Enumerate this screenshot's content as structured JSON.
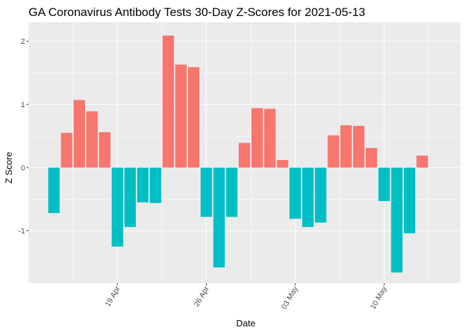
{
  "chart_data": {
    "type": "bar",
    "title": "GA Coronavirus Antibody Tests 30-Day Z-Scores for 2021-05-13",
    "xlabel": "Date",
    "ylabel": "Z Score",
    "x_start_date": "2021-04-14",
    "x_tick_labels": [
      {
        "date": "2021-04-19",
        "label": "19 Apr"
      },
      {
        "date": "2021-04-26",
        "label": "26 Apr"
      },
      {
        "date": "2021-05-03",
        "label": "03 May"
      },
      {
        "date": "2021-05-10",
        "label": "10 May"
      }
    ],
    "y_ticks": [
      -1,
      0,
      1,
      2
    ],
    "xlim": [
      "2021-04-12",
      "2021-05-16"
    ],
    "ylim": [
      -1.83,
      2.3
    ],
    "grid": true,
    "legend": "none",
    "colors": {
      "positive": "#F8766D",
      "negative": "#00BFC4",
      "panel": "#EBEBEB",
      "grid": "#FFFFFF"
    },
    "series": [
      {
        "values": [
          {
            "date": "2021-04-14",
            "z": -0.72
          },
          {
            "date": "2021-04-15",
            "z": 0.55
          },
          {
            "date": "2021-04-16",
            "z": 1.07
          },
          {
            "date": "2021-04-17",
            "z": 0.89
          },
          {
            "date": "2021-04-18",
            "z": 0.56
          },
          {
            "date": "2021-04-19",
            "z": -1.25
          },
          {
            "date": "2021-04-20",
            "z": -0.94
          },
          {
            "date": "2021-04-21",
            "z": -0.55
          },
          {
            "date": "2021-04-22",
            "z": -0.56
          },
          {
            "date": "2021-04-23",
            "z": 2.09
          },
          {
            "date": "2021-04-24",
            "z": 1.63
          },
          {
            "date": "2021-04-25",
            "z": 1.59
          },
          {
            "date": "2021-04-26",
            "z": -0.78
          },
          {
            "date": "2021-04-27",
            "z": -1.58
          },
          {
            "date": "2021-04-28",
            "z": -0.78
          },
          {
            "date": "2021-04-29",
            "z": 0.39
          },
          {
            "date": "2021-04-30",
            "z": 0.94
          },
          {
            "date": "2021-05-01",
            "z": 0.93
          },
          {
            "date": "2021-05-02",
            "z": 0.12
          },
          {
            "date": "2021-05-03",
            "z": -0.81
          },
          {
            "date": "2021-05-04",
            "z": -0.94
          },
          {
            "date": "2021-05-05",
            "z": -0.87
          },
          {
            "date": "2021-05-06",
            "z": 0.51
          },
          {
            "date": "2021-05-07",
            "z": 0.67
          },
          {
            "date": "2021-05-08",
            "z": 0.66
          },
          {
            "date": "2021-05-09",
            "z": 0.31
          },
          {
            "date": "2021-05-10",
            "z": -0.53
          },
          {
            "date": "2021-05-11",
            "z": -1.66
          },
          {
            "date": "2021-05-12",
            "z": -1.04
          },
          {
            "date": "2021-05-13",
            "z": 0.19
          }
        ]
      }
    ]
  }
}
